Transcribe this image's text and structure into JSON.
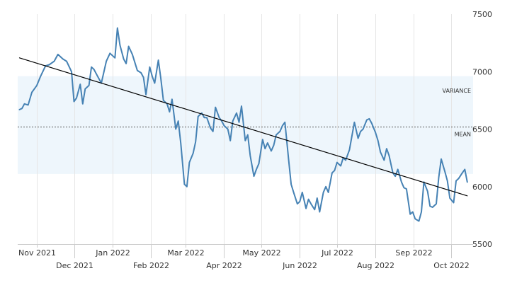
{
  "chart_data": {
    "type": "line",
    "title": "",
    "xlabel": "",
    "ylabel": "",
    "ylim": [
      5500,
      7500
    ],
    "y_ticks": [
      5500,
      6000,
      6500,
      7000,
      7500
    ],
    "y_axis_side": "right",
    "grid": "vertical",
    "x_ticks": [
      {
        "label": "Nov 2021",
        "row": "top",
        "date": "2021-11-01"
      },
      {
        "label": "Dec 2021",
        "row": "bottom",
        "date": "2021-12-01"
      },
      {
        "label": "Jan 2022",
        "row": "top",
        "date": "2022-01-01"
      },
      {
        "label": "Feb 2022",
        "row": "bottom",
        "date": "2022-02-01"
      },
      {
        "label": "Mar 2022",
        "row": "top",
        "date": "2022-03-01"
      },
      {
        "label": "Apr 2022",
        "row": "bottom",
        "date": "2022-04-01"
      },
      {
        "label": "May 2022",
        "row": "top",
        "date": "2022-05-01"
      },
      {
        "label": "Jun 2022",
        "row": "bottom",
        "date": "2022-06-01"
      },
      {
        "label": "Jul 2022",
        "row": "top",
        "date": "2022-07-01"
      },
      {
        "label": "Aug 2022",
        "row": "bottom",
        "date": "2022-08-01"
      },
      {
        "label": "Sep 2022",
        "row": "top",
        "date": "2022-09-01"
      },
      {
        "label": "Oct 2022",
        "row": "bottom",
        "date": "2022-10-01"
      }
    ],
    "series": [
      {
        "color": "#4682b4",
        "x": [
          "2021-10-18",
          "2021-10-20",
          "2021-10-22",
          "2021-10-25",
          "2021-10-28",
          "2021-11-01",
          "2021-11-04",
          "2021-11-08",
          "2021-11-11",
          "2021-11-15",
          "2021-11-18",
          "2021-11-22",
          "2021-11-25",
          "2021-11-29",
          "2021-12-01",
          "2021-12-03",
          "2021-12-06",
          "2021-12-08",
          "2021-12-10",
          "2021-12-13",
          "2021-12-15",
          "2021-12-17",
          "2021-12-20",
          "2021-12-23",
          "2021-12-27",
          "2021-12-30",
          "2022-01-03",
          "2022-01-05",
          "2022-01-07",
          "2022-01-10",
          "2022-01-12",
          "2022-01-14",
          "2022-01-17",
          "2022-01-19",
          "2022-01-21",
          "2022-01-24",
          "2022-01-26",
          "2022-01-28",
          "2022-01-31",
          "2022-02-02",
          "2022-02-04",
          "2022-02-07",
          "2022-02-09",
          "2022-02-11",
          "2022-02-14",
          "2022-02-16",
          "2022-02-18",
          "2022-02-21",
          "2022-02-23",
          "2022-02-25",
          "2022-02-28",
          "2022-03-02",
          "2022-03-04",
          "2022-03-07",
          "2022-03-09",
          "2022-03-11",
          "2022-03-14",
          "2022-03-16",
          "2022-03-18",
          "2022-03-21",
          "2022-03-23",
          "2022-03-25",
          "2022-03-28",
          "2022-03-30",
          "2022-04-01",
          "2022-04-04",
          "2022-04-06",
          "2022-04-08",
          "2022-04-11",
          "2022-04-13",
          "2022-04-15",
          "2022-04-18",
          "2022-04-20",
          "2022-04-22",
          "2022-04-25",
          "2022-04-27",
          "2022-04-29",
          "2022-05-02",
          "2022-05-04",
          "2022-05-06",
          "2022-05-09",
          "2022-05-11",
          "2022-05-13",
          "2022-05-16",
          "2022-05-18",
          "2022-05-20",
          "2022-05-23",
          "2022-05-25",
          "2022-05-27",
          "2022-05-30",
          "2022-06-01",
          "2022-06-03",
          "2022-06-06",
          "2022-06-08",
          "2022-06-10",
          "2022-06-13",
          "2022-06-15",
          "2022-06-17",
          "2022-06-20",
          "2022-06-22",
          "2022-06-24",
          "2022-06-27",
          "2022-06-29",
          "2022-07-01",
          "2022-07-04",
          "2022-07-06",
          "2022-07-08",
          "2022-07-11",
          "2022-07-13",
          "2022-07-15",
          "2022-07-18",
          "2022-07-20",
          "2022-07-22",
          "2022-07-25",
          "2022-07-27",
          "2022-07-29",
          "2022-08-01",
          "2022-08-03",
          "2022-08-05",
          "2022-08-08",
          "2022-08-10",
          "2022-08-12",
          "2022-08-15",
          "2022-08-17",
          "2022-08-19",
          "2022-08-22",
          "2022-08-24",
          "2022-08-26",
          "2022-08-29",
          "2022-08-31",
          "2022-09-02",
          "2022-09-05",
          "2022-09-07",
          "2022-09-09",
          "2022-09-12",
          "2022-09-14",
          "2022-09-16",
          "2022-09-19",
          "2022-09-21",
          "2022-09-23",
          "2022-09-26",
          "2022-09-28",
          "2022-09-30",
          "2022-10-03",
          "2022-10-05",
          "2022-10-07",
          "2022-10-10",
          "2022-10-12",
          "2022-10-14"
        ],
        "y": [
          6670,
          6680,
          6720,
          6710,
          6820,
          6880,
          6960,
          7050,
          7060,
          7090,
          7150,
          7110,
          7090,
          7000,
          6740,
          6770,
          6890,
          6720,
          6850,
          6880,
          7040,
          7020,
          6960,
          6900,
          7090,
          7160,
          7120,
          7380,
          7230,
          7110,
          7070,
          7220,
          7150,
          7080,
          7010,
          6990,
          6950,
          6800,
          7040,
          6960,
          6900,
          7100,
          6940,
          6750,
          6720,
          6650,
          6760,
          6500,
          6570,
          6380,
          6020,
          6000,
          6210,
          6290,
          6390,
          6610,
          6640,
          6600,
          6600,
          6510,
          6480,
          6690,
          6600,
          6570,
          6530,
          6500,
          6400,
          6570,
          6640,
          6560,
          6700,
          6400,
          6450,
          6270,
          6090,
          6150,
          6200,
          6410,
          6330,
          6380,
          6310,
          6360,
          6450,
          6480,
          6530,
          6560,
          6230,
          6020,
          5950,
          5850,
          5870,
          5950,
          5810,
          5890,
          5850,
          5800,
          5900,
          5780,
          5950,
          6000,
          5950,
          6120,
          6140,
          6210,
          6180,
          6250,
          6230,
          6320,
          6440,
          6560,
          6420,
          6480,
          6500,
          6580,
          6590,
          6550,
          6470,
          6400,
          6300,
          6230,
          6330,
          6270,
          6120,
          6090,
          6150,
          6040,
          5990,
          5980,
          5760,
          5780,
          5720,
          5700,
          5780,
          6040,
          5960,
          5830,
          5820,
          5850,
          6080,
          6240,
          6130,
          6050,
          5900,
          5860,
          6050,
          6070,
          6120,
          6150,
          6040
        ]
      },
      {
        "name": "",
        "color": "#000000",
        "x": [
          "2021-10-18",
          "2022-10-14"
        ],
        "y": [
          7120,
          5920
        ]
      }
    ],
    "mean": 6520,
    "variance_band": [
      6110,
      6960
    ],
    "annotations": [
      "VARIANCE",
      "MEAN"
    ],
    "fill_color": "#eef6fc"
  }
}
